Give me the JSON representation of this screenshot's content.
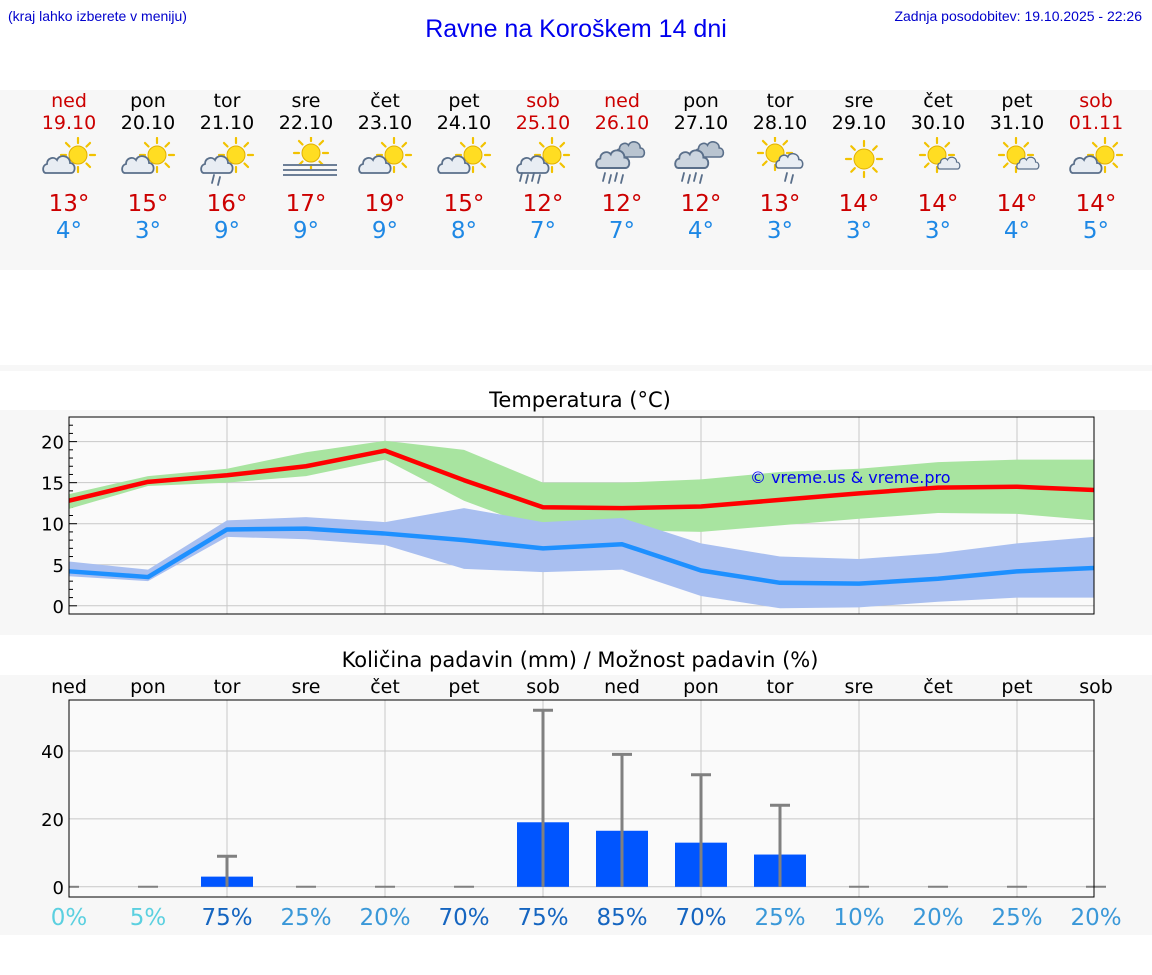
{
  "header": {
    "hint": "(kraj lahko izberete v meniju)",
    "title": "Ravne na Koroškem 14 dni",
    "updated": "Zadnja posodobitev: 19.10.2025 - 22:26"
  },
  "colors": {
    "title_blue": "#0000ee",
    "weekend_red": "#cc0000",
    "max_line": "#ff0000",
    "min_line": "#1e90ff",
    "max_band": "#a8e4a0",
    "min_band": "#a9bff0",
    "bar": "#0055ff",
    "errorbar": "#808080",
    "watermark": "#0000ee"
  },
  "days": [
    {
      "name": "ned",
      "date": "19.10",
      "weekend": true,
      "icon": "cloud-sun-icon",
      "tmax": "13°",
      "tmin": "4°"
    },
    {
      "name": "pon",
      "date": "20.10",
      "weekend": false,
      "icon": "cloud-sun-icon",
      "tmax": "15°",
      "tmin": "3°"
    },
    {
      "name": "tor",
      "date": "21.10",
      "weekend": false,
      "icon": "sun-rain-icon",
      "tmax": "16°",
      "tmin": "9°"
    },
    {
      "name": "sre",
      "date": "22.10",
      "weekend": false,
      "icon": "sun-fog-icon",
      "tmax": "17°",
      "tmin": "9°"
    },
    {
      "name": "čet",
      "date": "23.10",
      "weekend": false,
      "icon": "cloud-sun-icon",
      "tmax": "19°",
      "tmin": "9°"
    },
    {
      "name": "pet",
      "date": "24.10",
      "weekend": false,
      "icon": "cloud-sun-icon",
      "tmax": "15°",
      "tmin": "8°"
    },
    {
      "name": "sob",
      "date": "25.10",
      "weekend": true,
      "icon": "sun-heavy-rain-icon",
      "tmax": "12°",
      "tmin": "7°"
    },
    {
      "name": "ned",
      "date": "26.10",
      "weekend": true,
      "icon": "cloud-rain-icon",
      "tmax": "12°",
      "tmin": "7°"
    },
    {
      "name": "pon",
      "date": "27.10",
      "weekend": false,
      "icon": "cloud-rain-icon",
      "tmax": "12°",
      "tmin": "4°"
    },
    {
      "name": "tor",
      "date": "28.10",
      "weekend": false,
      "icon": "sun-cloud-rain-icon",
      "tmax": "13°",
      "tmin": "3°"
    },
    {
      "name": "sre",
      "date": "29.10",
      "weekend": false,
      "icon": "sun-icon",
      "tmax": "14°",
      "tmin": "3°"
    },
    {
      "name": "čet",
      "date": "30.10",
      "weekend": false,
      "icon": "sun-small-cloud-icon",
      "tmax": "14°",
      "tmin": "3°"
    },
    {
      "name": "pet",
      "date": "31.10",
      "weekend": false,
      "icon": "sun-small-cloud-icon",
      "tmax": "14°",
      "tmin": "4°"
    },
    {
      "name": "sob",
      "date": "01.11",
      "weekend": true,
      "icon": "cloud-sun-icon",
      "tmax": "14°",
      "tmin": "5°"
    }
  ],
  "chart_data": [
    {
      "type": "line",
      "title": "Temperatura (°C)",
      "watermark": "© vreme.us & vreme.pro",
      "ylim": [
        -1,
        23
      ],
      "yticks": [
        0,
        5,
        10,
        15,
        20
      ],
      "grid": true,
      "x": [
        0,
        1,
        2,
        3,
        4,
        5,
        6,
        7,
        8,
        9,
        10,
        11,
        12,
        13
      ],
      "series": [
        {
          "role": "max",
          "values": [
            12.8,
            15.1,
            15.9,
            17.0,
            18.9,
            15.3,
            12.0,
            11.9,
            12.1,
            12.9,
            13.7,
            14.4,
            14.5,
            14.1
          ],
          "band_low": [
            11.8,
            14.6,
            15.0,
            15.8,
            17.8,
            12.8,
            9.2,
            9.2,
            9.0,
            9.8,
            10.6,
            11.3,
            11.2,
            10.4
          ],
          "band_high": [
            13.6,
            15.8,
            16.7,
            18.7,
            20.1,
            19.0,
            15.0,
            15.0,
            15.4,
            16.3,
            16.7,
            17.5,
            17.8,
            17.8
          ]
        },
        {
          "role": "min",
          "values": [
            4.2,
            3.5,
            9.3,
            9.4,
            8.8,
            8.0,
            7.0,
            7.5,
            4.3,
            2.8,
            2.7,
            3.3,
            4.2,
            4.6
          ],
          "band_low": [
            3.6,
            3.0,
            8.4,
            8.1,
            7.4,
            4.5,
            4.1,
            4.4,
            1.2,
            -0.3,
            -0.2,
            0.5,
            1.0,
            1.0
          ],
          "band_high": [
            5.4,
            4.4,
            10.4,
            10.8,
            10.2,
            11.9,
            10.2,
            10.7,
            7.6,
            6.0,
            5.7,
            6.4,
            7.6,
            8.4
          ]
        }
      ]
    },
    {
      "type": "bar",
      "title": "Količina padavin (mm) / Možnost padavin (%)",
      "categories": [
        "ned",
        "pon",
        "tor",
        "sre",
        "čet",
        "pet",
        "sob",
        "ned",
        "pon",
        "tor",
        "sre",
        "čet",
        "pet",
        "sob"
      ],
      "values": [
        0,
        0,
        3,
        0,
        0,
        0,
        19,
        16.5,
        13,
        9.5,
        0,
        0,
        0,
        0
      ],
      "error_high": [
        0,
        0,
        9,
        0,
        0,
        0,
        52,
        39,
        33,
        24,
        0,
        0,
        0,
        0
      ],
      "probability": [
        "0%",
        "5%",
        "75%",
        "25%",
        "20%",
        "70%",
        "75%",
        "85%",
        "70%",
        "25%",
        "10%",
        "20%",
        "25%",
        "20%"
      ],
      "probability_colors": [
        "#5bd0e0",
        "#5bd0e0",
        "#1565c0",
        "#3a98d8",
        "#3a98d8",
        "#1565c0",
        "#1565c0",
        "#1565c0",
        "#1565c0",
        "#3a98d8",
        "#3a98d8",
        "#3a98d8",
        "#3a98d8",
        "#3a98d8"
      ],
      "ylim": [
        -3,
        55
      ],
      "yticks": [
        0,
        20,
        40
      ],
      "grid": true
    }
  ]
}
